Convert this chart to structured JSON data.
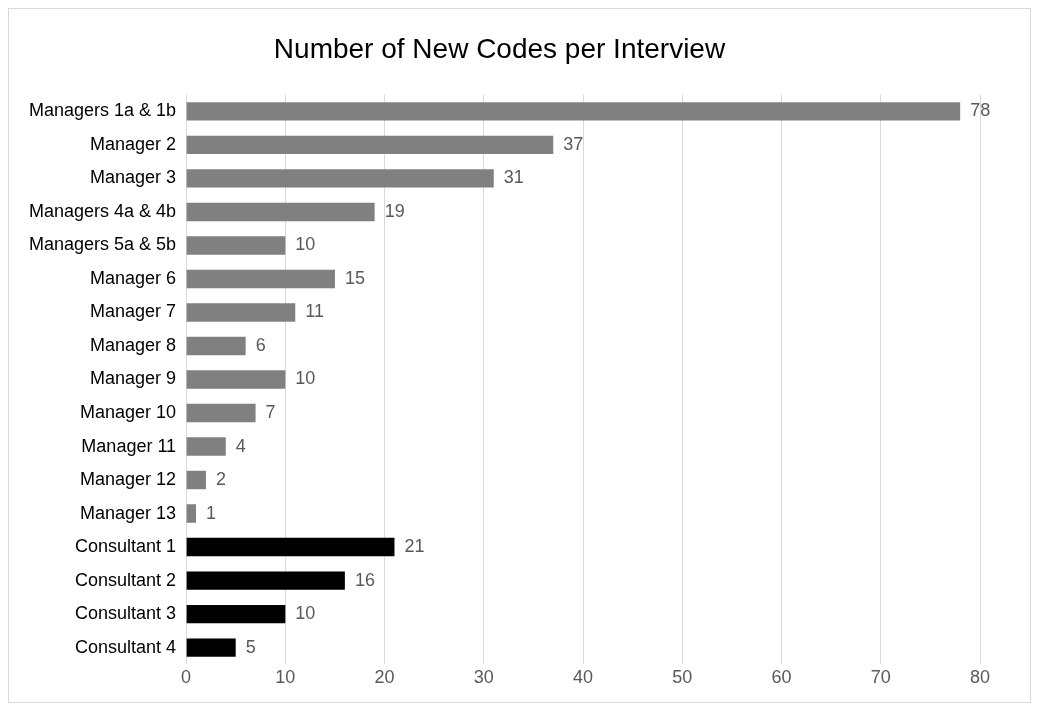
{
  "chart_data": {
    "type": "bar",
    "orientation": "horizontal",
    "title": "Number of New Codes per Interview",
    "categories": [
      "Managers 1a & 1b",
      "Manager 2",
      "Manager 3",
      "Managers 4a & 4b",
      "Managers 5a & 5b",
      "Manager 6",
      "Manager 7",
      "Manager 8",
      "Manager 9",
      "Manager 10",
      "Manager 11",
      "Manager 12",
      "Manager 13",
      "Consultant 1",
      "Consultant 2",
      "Consultant 3",
      "Consultant 4"
    ],
    "values": [
      78,
      37,
      31,
      19,
      10,
      15,
      11,
      6,
      10,
      7,
      4,
      2,
      1,
      21,
      16,
      10,
      5
    ],
    "colors": [
      "#808080",
      "#808080",
      "#808080",
      "#808080",
      "#808080",
      "#808080",
      "#808080",
      "#808080",
      "#808080",
      "#808080",
      "#808080",
      "#808080",
      "#808080",
      "#000000",
      "#000000",
      "#000000",
      "#000000"
    ],
    "xlim": [
      0,
      80
    ],
    "xticks": [
      0,
      10,
      20,
      30,
      40,
      50,
      60,
      70,
      80
    ],
    "grid": "x",
    "data_labels": true
  }
}
